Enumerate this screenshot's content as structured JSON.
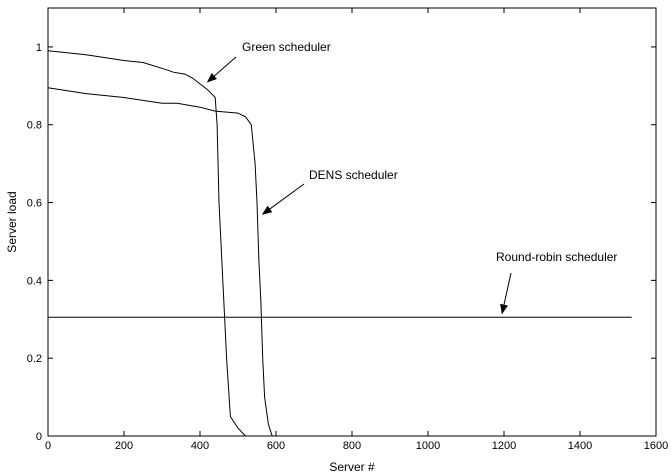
{
  "chart_data": {
    "type": "line",
    "title": "",
    "xlabel": "Server #",
    "ylabel": "Server load",
    "xlim": [
      0,
      1600
    ],
    "ylim": [
      0,
      1.1
    ],
    "xticks": [
      0,
      200,
      400,
      600,
      800,
      1000,
      1200,
      1400,
      1600
    ],
    "yticks": [
      0,
      0.2,
      0.4,
      0.6,
      0.8,
      1
    ],
    "grid": false,
    "series": [
      {
        "name": "Green scheduler",
        "x": [
          0,
          100,
          200,
          250,
          300,
          330,
          360,
          380,
          400,
          420,
          440,
          445,
          450,
          460,
          470,
          480,
          490,
          500,
          520
        ],
        "y": [
          0.99,
          0.98,
          0.965,
          0.96,
          0.945,
          0.935,
          0.93,
          0.92,
          0.905,
          0.89,
          0.87,
          0.8,
          0.6,
          0.4,
          0.2,
          0.05,
          0.035,
          0.02,
          0.0
        ]
      },
      {
        "name": "DENS scheduler",
        "x": [
          0,
          100,
          200,
          300,
          340,
          400,
          440,
          500,
          520,
          535,
          545,
          550,
          555,
          560,
          565,
          570,
          580,
          590
        ],
        "y": [
          0.895,
          0.88,
          0.87,
          0.855,
          0.855,
          0.845,
          0.835,
          0.83,
          0.82,
          0.8,
          0.7,
          0.6,
          0.45,
          0.35,
          0.2,
          0.1,
          0.03,
          0.0
        ]
      },
      {
        "name": "Round-robin scheduler",
        "x": [
          0,
          200,
          400,
          600,
          800,
          1000,
          1200,
          1400,
          1536
        ],
        "y": [
          0.305,
          0.305,
          0.305,
          0.305,
          0.305,
          0.305,
          0.305,
          0.305,
          0.305
        ]
      }
    ],
    "annotations": [
      {
        "text": "Green scheduler",
        "series": "Green scheduler",
        "point": [
          420,
          0.91
        ]
      },
      {
        "text": "DENS scheduler",
        "series": "DENS scheduler",
        "point": [
          565,
          0.57
        ]
      },
      {
        "text": "Round-robin scheduler",
        "series": "Round-robin scheduler",
        "point": [
          1195,
          0.315
        ]
      }
    ],
    "colors": {
      "line": "#000000",
      "background": "#ffffff"
    }
  }
}
